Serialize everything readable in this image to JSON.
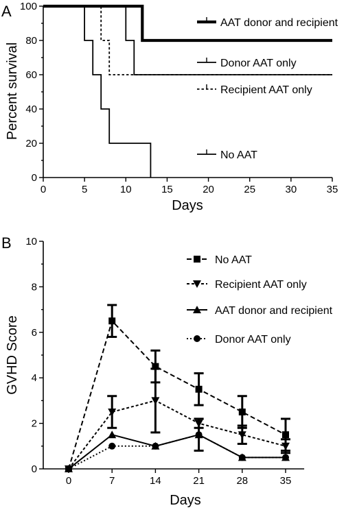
{
  "chart_data": [
    {
      "type": "line",
      "panel_label": "A",
      "xlabel": "Days",
      "ylabel": "Percent survival",
      "xlim": [
        0,
        35
      ],
      "ylim": [
        0,
        100
      ],
      "xticks": [
        0,
        5,
        10,
        15,
        20,
        25,
        30,
        35
      ],
      "yticks": [
        0,
        20,
        40,
        60,
        80,
        100
      ],
      "step": true,
      "series": [
        {
          "name": "AAT donor and recipient",
          "style": "thick",
          "x": [
            0,
            12,
            12,
            35
          ],
          "y": [
            100,
            100,
            80,
            80
          ]
        },
        {
          "name": "Donor AAT only",
          "style": "solid",
          "x": [
            0,
            10,
            10,
            11,
            11,
            35
          ],
          "y": [
            100,
            100,
            80,
            80,
            60,
            60
          ]
        },
        {
          "name": "Recipient AAT only",
          "style": "dashed",
          "x": [
            0,
            7,
            7,
            8,
            8,
            35
          ],
          "y": [
            100,
            100,
            80,
            80,
            60,
            60
          ]
        },
        {
          "name": "No AAT",
          "style": "solid",
          "x": [
            0,
            5,
            5,
            6,
            6,
            7,
            7,
            8,
            8,
            13,
            13
          ],
          "y": [
            100,
            100,
            80,
            80,
            60,
            60,
            40,
            40,
            20,
            20,
            0
          ]
        }
      ]
    },
    {
      "type": "line",
      "panel_label": "B",
      "xlabel": "Days",
      "ylabel": "GVHD Score",
      "x": [
        0,
        7,
        14,
        21,
        28,
        35
      ],
      "xlim": [
        -3,
        38
      ],
      "ylim": [
        0,
        10
      ],
      "xticks": [
        0,
        7,
        14,
        21,
        28,
        35
      ],
      "yticks": [
        0,
        2,
        4,
        6,
        8,
        10
      ],
      "series": [
        {
          "name": "No AAT",
          "marker": "square",
          "dash": "long",
          "values": [
            0,
            6.5,
            4.5,
            3.5,
            2.5,
            1.5
          ],
          "err": [
            0,
            0.7,
            0.7,
            0.7,
            0.7,
            0.7
          ]
        },
        {
          "name": "Recipient AAT only",
          "marker": "triangle-down",
          "dash": "short",
          "values": [
            0,
            2.5,
            3.0,
            2.0,
            1.5,
            1.0
          ],
          "err": [
            0,
            0.7,
            1.4,
            0.2,
            0.4,
            0.3
          ]
        },
        {
          "name": "AAT donor and recipient",
          "marker": "triangle-up",
          "dash": "none",
          "values": [
            0,
            1.5,
            1.0,
            1.5,
            0.5,
            0.5
          ],
          "err": [
            0,
            0,
            0,
            0.7,
            0,
            0
          ]
        },
        {
          "name": "Donor AAT only",
          "marker": "circle",
          "dash": "dot",
          "values": [
            0,
            1.0,
            1.0,
            1.5,
            0.5,
            0.5
          ],
          "err": [
            0,
            0,
            0,
            0,
            0,
            0
          ]
        }
      ]
    }
  ]
}
